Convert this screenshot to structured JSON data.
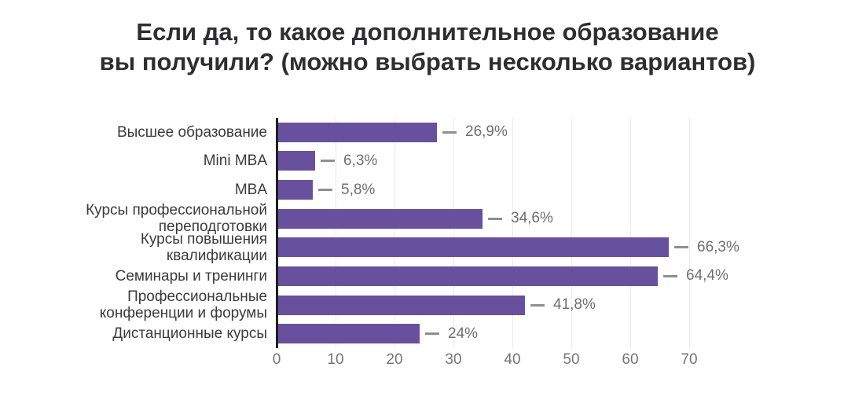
{
  "chart_data": {
    "type": "bar",
    "orientation": "horizontal",
    "title": "Если да, то какое дополнительное образование вы получили? (можно выбрать несколько вариантов)",
    "title_lines": [
      "Если да, то какое дополнительное образование",
      "вы получили? (можно выбрать несколько вариантов)"
    ],
    "categories": [
      "Высшее образование",
      "Mini MBA",
      "MBA",
      "Курсы профессиональной переподготовки",
      "Курсы повышения квалификации",
      "Семинары и тренинги",
      "Профессиональные конференции и форумы",
      "Дистанционные курсы"
    ],
    "categories_lines": [
      [
        "Высшее образование"
      ],
      [
        "Mini MBA"
      ],
      [
        "MBA"
      ],
      [
        "Курсы профессиональной",
        "переподготовки"
      ],
      [
        "Курсы повышения",
        "квалификации"
      ],
      [
        "Семинары и тренинги"
      ],
      [
        "Профессиональные",
        "конференции и форумы"
      ],
      [
        "Дистанционные курсы"
      ]
    ],
    "values": [
      26.9,
      6.3,
      5.8,
      34.6,
      66.3,
      64.4,
      41.8,
      24
    ],
    "value_labels": [
      "26,9%",
      "6,3%",
      "5,8%",
      "34,6%",
      "66,3%",
      "64,4%",
      "41,8%",
      "24%"
    ],
    "xlabel": "",
    "ylabel": "",
    "xlim": [
      0,
      70
    ],
    "x_ticks": [
      "0",
      "10",
      "20",
      "30",
      "40",
      "50",
      "60",
      "70"
    ],
    "grid": true,
    "legend": false,
    "colors": {
      "bar": "#67519e",
      "axis_line": "#1f1f1f",
      "gridline": "#ebebeb",
      "tick_label": "#757575",
      "value_label": "#6f6f6f",
      "callout_line": "#8f8f8f",
      "category_label": "#3b3b3b",
      "title": "#2e2e31",
      "background": "#ffffff"
    }
  }
}
